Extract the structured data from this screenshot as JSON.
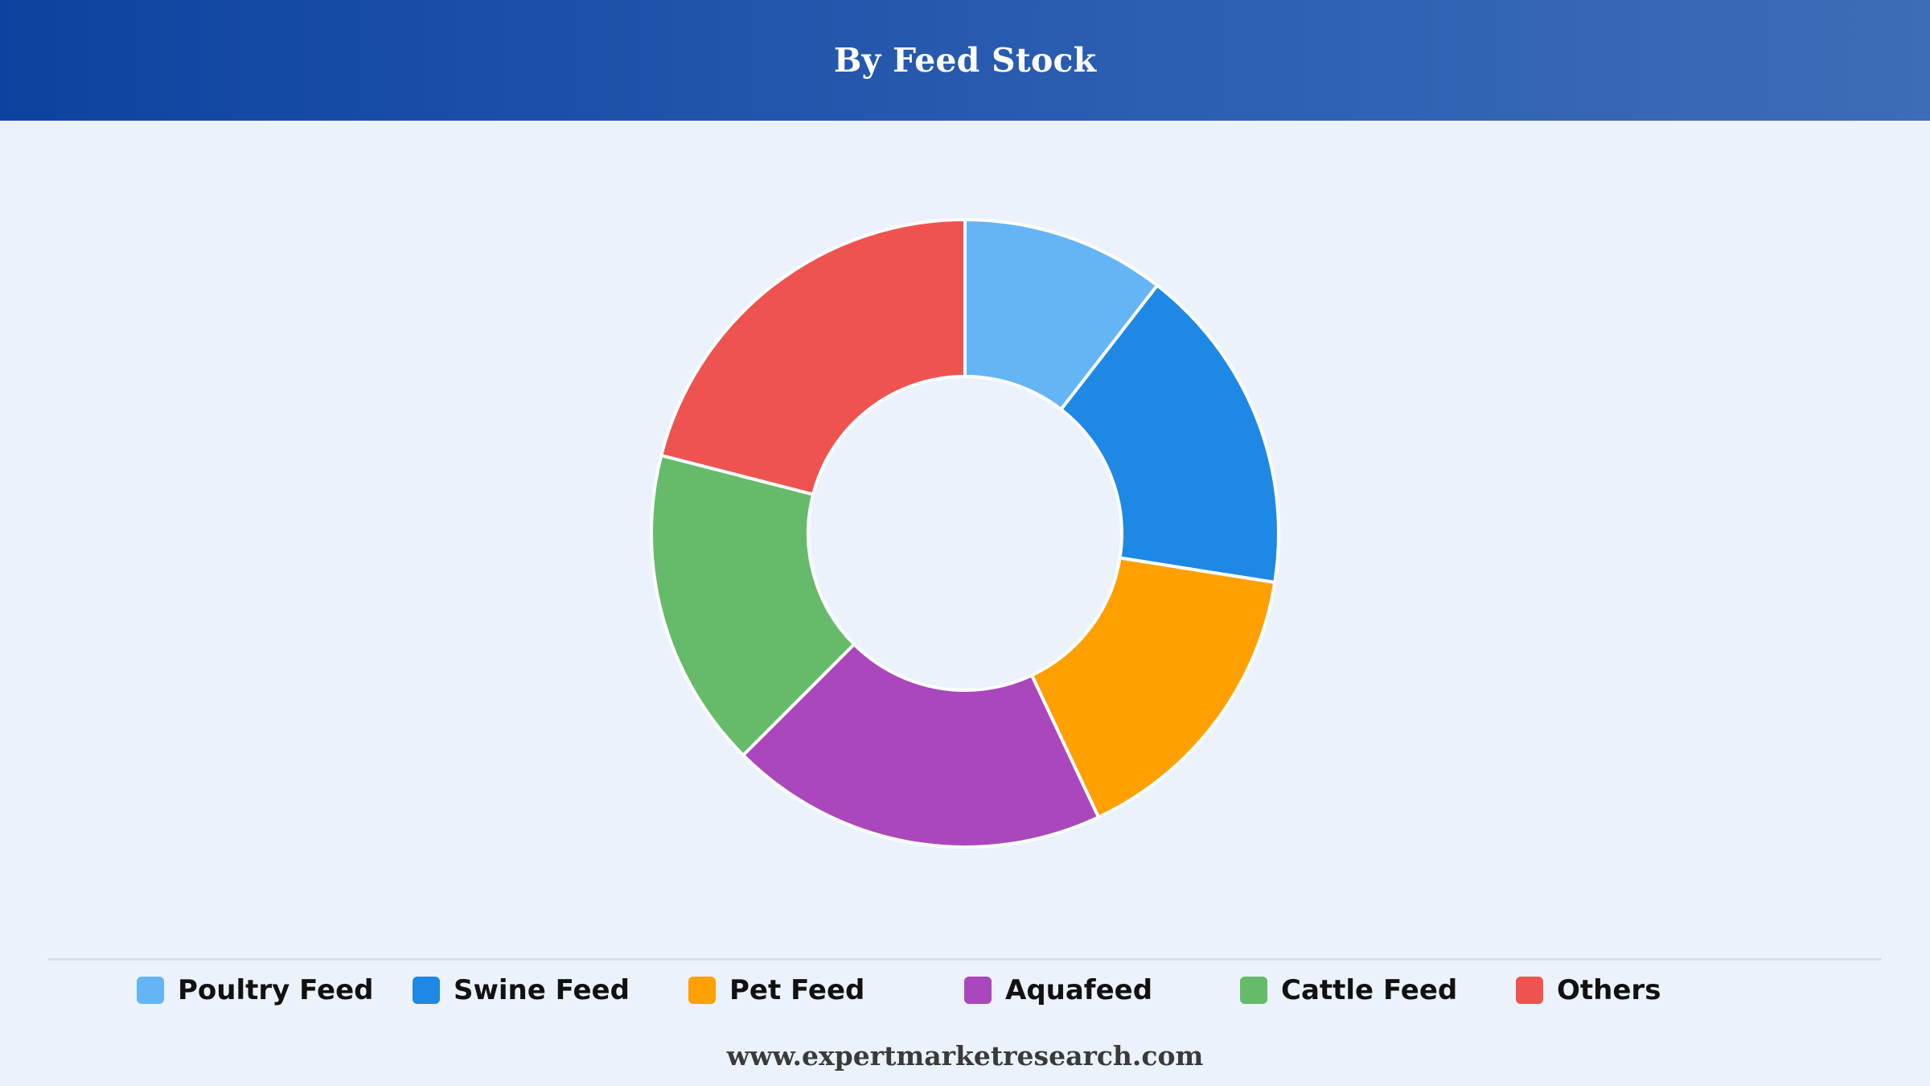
{
  "header": {
    "title": "By Feed Stock"
  },
  "chart_data": {
    "type": "pie",
    "style": "donut",
    "title": "By Feed Stock",
    "categories": [
      "Poultry Feed",
      "Swine Feed",
      "Pet Feed",
      "Aquafeed",
      "Cattle Feed",
      "Others"
    ],
    "values": [
      10.5,
      17.0,
      15.5,
      19.5,
      16.5,
      21.0
    ],
    "colors": [
      "#64b5f6",
      "#1e88e5",
      "#ffa000",
      "#ab47bc",
      "#66bb6a",
      "#ef5350"
    ],
    "legend_position": "bottom",
    "slice_border_color": "#ffffff"
  },
  "legend": {
    "items": [
      {
        "label": "Poultry Feed",
        "color": "#64b5f6"
      },
      {
        "label": "Swine Feed",
        "color": "#1e88e5"
      },
      {
        "label": "Pet Feed",
        "color": "#ffa000"
      },
      {
        "label": "Aquafeed",
        "color": "#ab47bc"
      },
      {
        "label": "Cattle Feed",
        "color": "#66bb6a"
      },
      {
        "label": "Others",
        "color": "#ef5350"
      }
    ]
  },
  "footer": {
    "website": "www.expertmarketresearch.com"
  }
}
